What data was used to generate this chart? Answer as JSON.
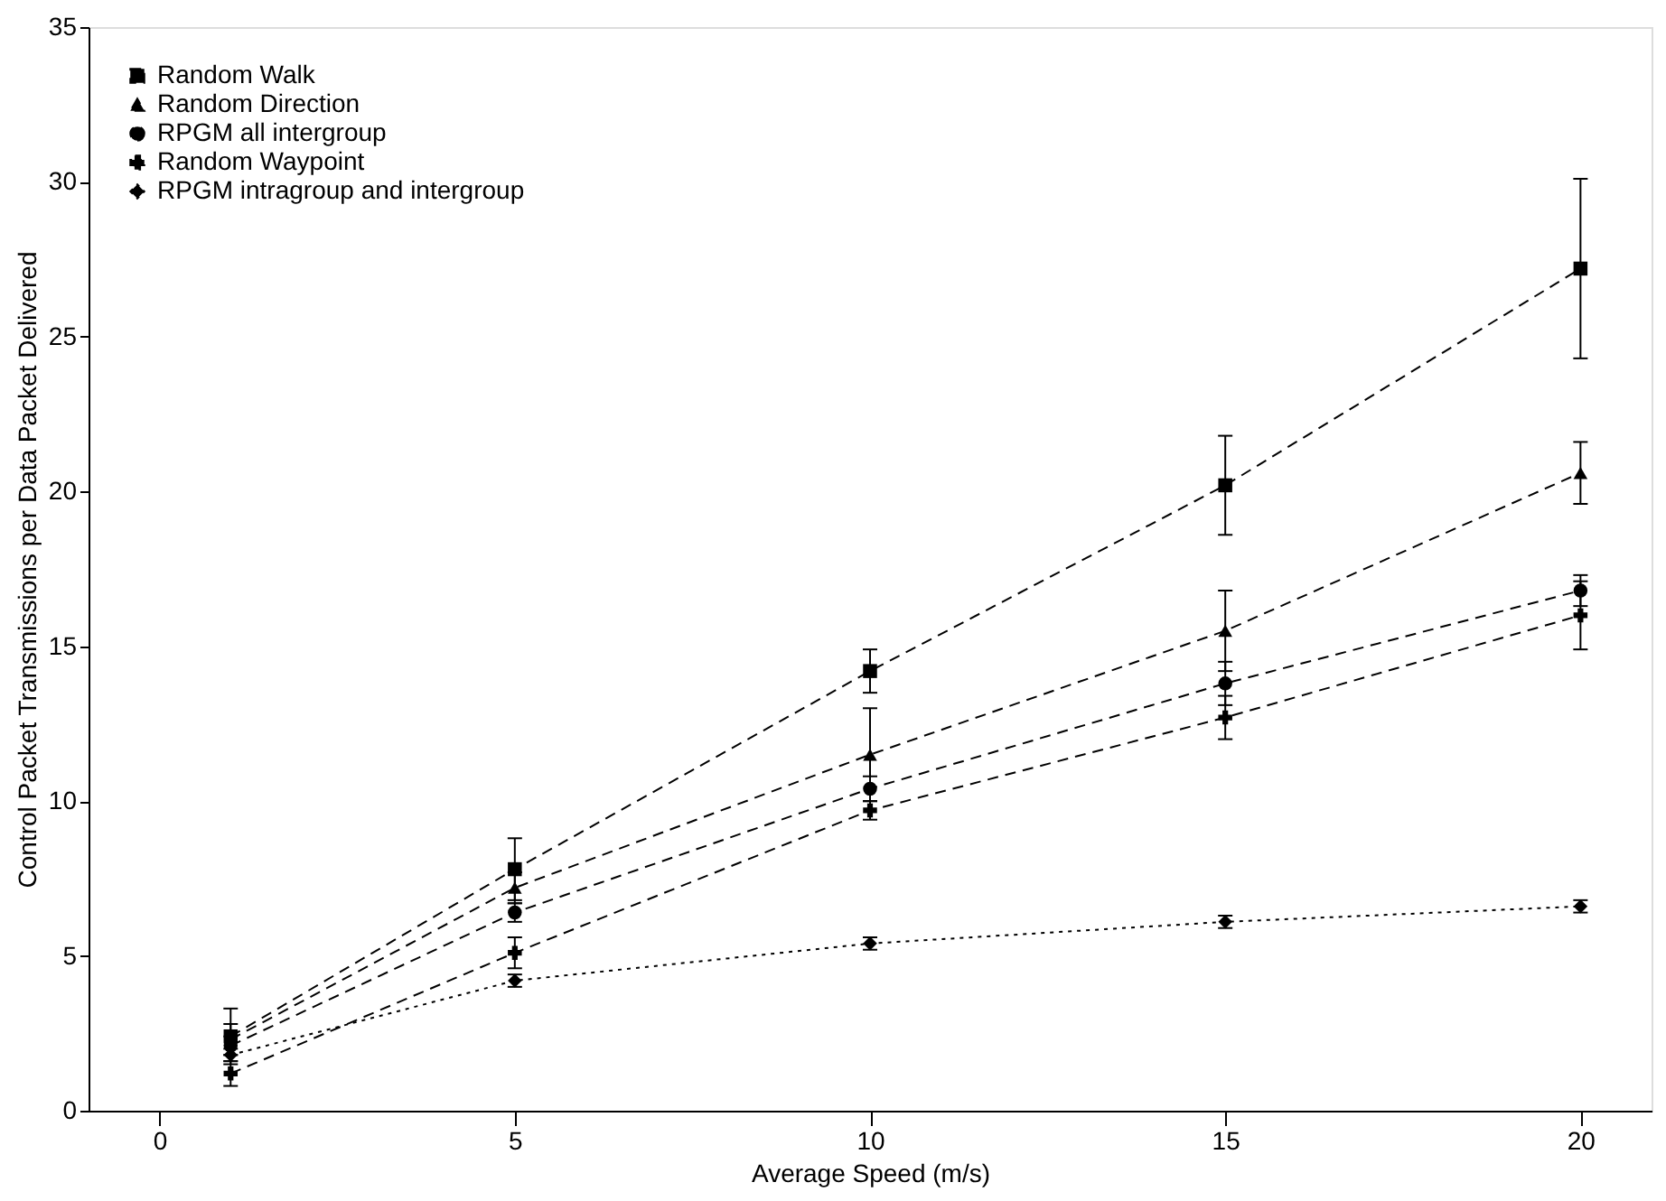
{
  "chart_data": {
    "type": "line",
    "xlabel": "Average Speed (m/s)",
    "ylabel": "Control Packet Transmissions per Data Packet Delivered",
    "x": [
      1,
      5,
      10,
      15,
      20
    ],
    "xlim": [
      -1,
      21
    ],
    "xticks": [
      0,
      5,
      10,
      15,
      20
    ],
    "ylim": [
      0,
      35
    ],
    "yticks": [
      0,
      5,
      10,
      15,
      20,
      25,
      30,
      35
    ],
    "grid": false,
    "legend": "top left",
    "series": [
      {
        "name": "Random Walk",
        "color": "#000000",
        "marker": "square",
        "line_style": "dashed",
        "values": [
          2.4,
          7.8,
          14.2,
          20.2,
          27.2
        ],
        "errors": [
          0.9,
          1.0,
          0.7,
          1.6,
          2.9
        ]
      },
      {
        "name": "Random Direction",
        "color": "#000000",
        "marker": "triangle",
        "line_style": "dashed",
        "values": [
          2.3,
          7.2,
          11.5,
          15.5,
          20.6
        ],
        "errors": [
          0.5,
          0.5,
          1.5,
          1.3,
          1.0
        ]
      },
      {
        "name": "RPGM all intergroup",
        "color": "#000000",
        "marker": "circle",
        "line_style": "dashed",
        "values": [
          2.1,
          6.4,
          10.4,
          13.8,
          16.8
        ],
        "errors": [
          0.3,
          0.3,
          0.4,
          0.7,
          0.5
        ]
      },
      {
        "name": "Random Waypoint",
        "color": "#000000",
        "marker": "cross",
        "line_style": "dashed",
        "values": [
          1.2,
          5.1,
          9.7,
          12.7,
          16.0
        ],
        "errors": [
          0.4,
          0.5,
          0.3,
          0.7,
          1.1
        ]
      },
      {
        "name": "RPGM intragroup and intergroup",
        "color": "#000000",
        "marker": "diamond",
        "line_style": "dotted",
        "values": [
          1.8,
          4.2,
          5.4,
          6.1,
          6.6
        ],
        "errors": [
          0.2,
          0.2,
          0.2,
          0.2,
          0.2
        ]
      }
    ]
  }
}
